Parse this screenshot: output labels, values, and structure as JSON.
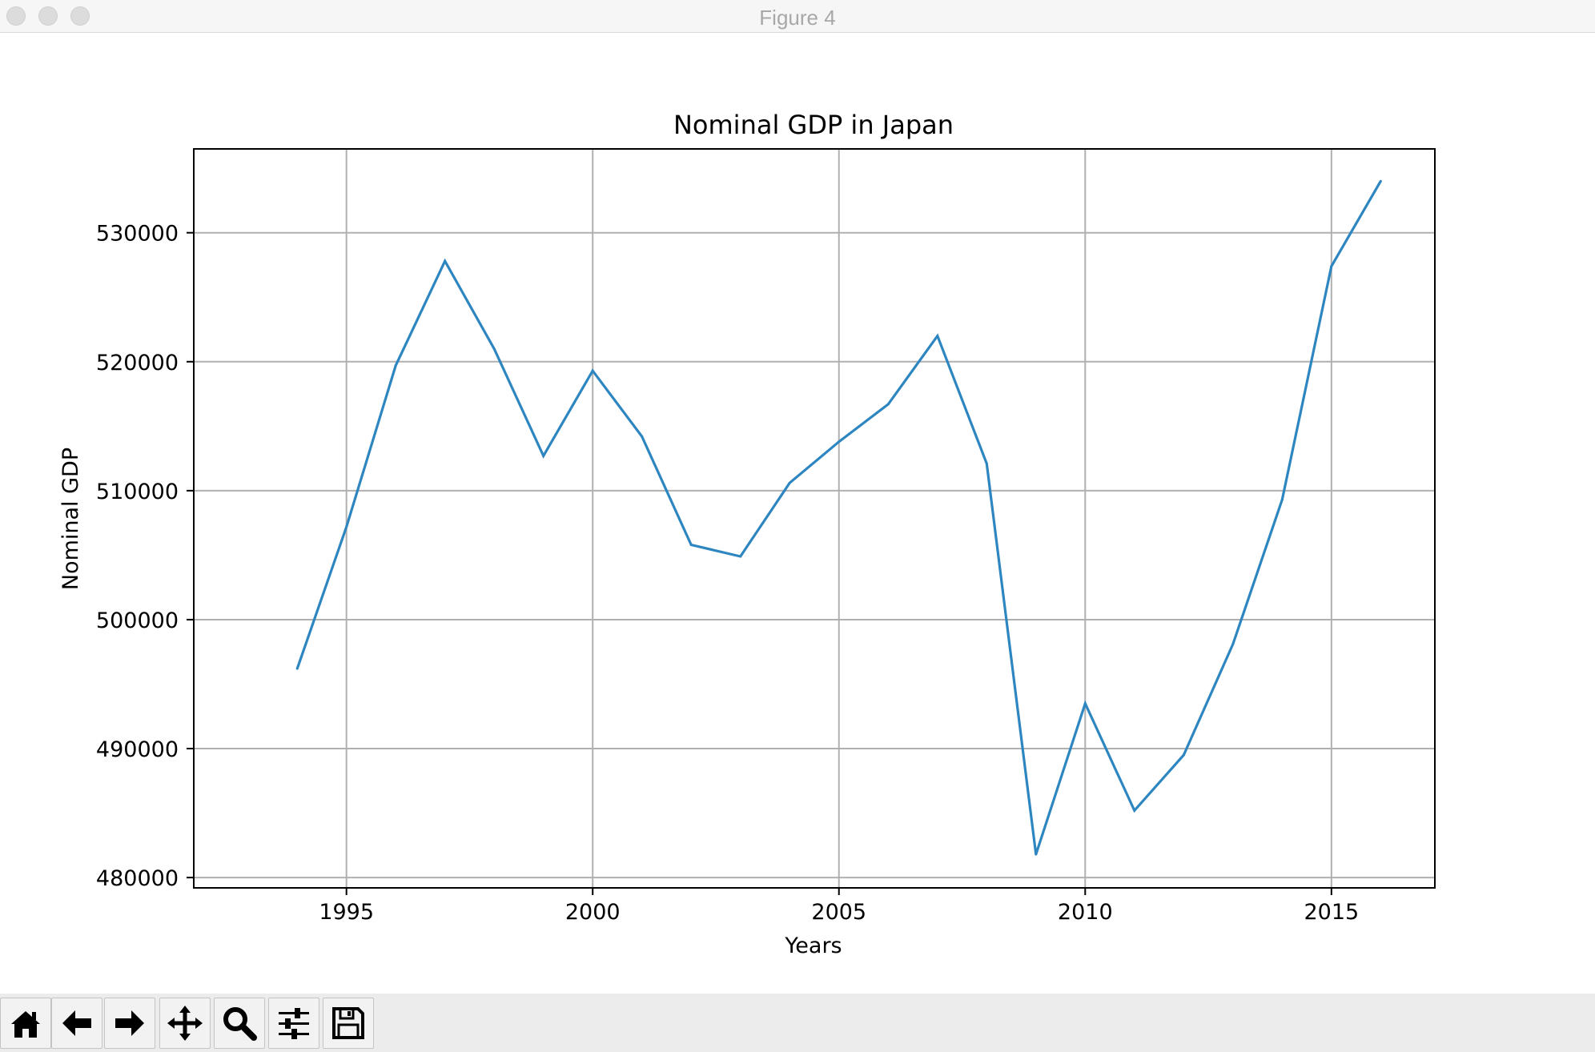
{
  "window": {
    "title": "Figure 4"
  },
  "toolbar": {
    "buttons": [
      {
        "name": "home-button",
        "icon": "home-icon"
      },
      {
        "name": "back-button",
        "icon": "arrow-left-icon"
      },
      {
        "name": "forward-button",
        "icon": "arrow-right-icon"
      },
      {
        "name": "pan-button",
        "icon": "move-icon"
      },
      {
        "name": "zoom-button",
        "icon": "magnifier-icon"
      },
      {
        "name": "configure-subplots-button",
        "icon": "sliders-icon"
      },
      {
        "name": "save-button",
        "icon": "floppy-disk-icon"
      }
    ]
  },
  "colors": {
    "line": "#2e86c1",
    "grid": "#b0b0b0",
    "axes": "#000000"
  },
  "chart_data": {
    "type": "line",
    "title": "Nominal GDP in Japan",
    "xlabel": "Years",
    "ylabel": "Nominal GDP",
    "grid": true,
    "xlim": [
      1991.9,
      2017.1
    ],
    "ylim": [
      479200,
      536500
    ],
    "xticks": [
      1995,
      2000,
      2005,
      2010,
      2015
    ],
    "xtick_labels": [
      "1995",
      "2000",
      "2005",
      "2010",
      "2015"
    ],
    "yticks": [
      480000,
      490000,
      500000,
      510000,
      520000,
      530000
    ],
    "ytick_labels": [
      "480000",
      "490000",
      "500000",
      "510000",
      "520000",
      "530000"
    ],
    "series": [
      {
        "name": "Nominal GDP",
        "x": [
          1994,
          1995,
          1996,
          1997,
          1998,
          1999,
          2000,
          2001,
          2002,
          2003,
          2004,
          2005,
          2006,
          2007,
          2008,
          2009,
          2010,
          2011,
          2012,
          2013,
          2014,
          2015,
          2016
        ],
        "values": [
          496200,
          507200,
          519700,
          527800,
          521000,
          512700,
          519300,
          514200,
          505800,
          504900,
          510600,
          513800,
          516700,
          522000,
          512100,
          481800,
          493500,
          485200,
          489500,
          498100,
          509300,
          527400,
          534000
        ]
      }
    ]
  }
}
